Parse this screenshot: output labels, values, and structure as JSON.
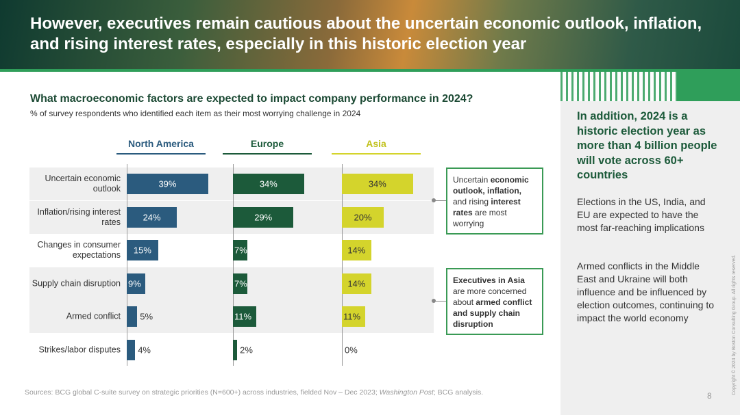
{
  "header": {
    "title": "However, executives remain cautious about the uncertain economic outlook, inflation, and rising interest rates, especially in this historic election year"
  },
  "chart_data": {
    "type": "bar",
    "orientation": "horizontal",
    "title": "What macroeconomic factors are expected to impact company performance in 2024?",
    "subtitle": "% of survey respondents who identified each item as their most worrying challenge in 2024",
    "categories": [
      "Uncertain economic outlook",
      "Inflation/rising interest rates",
      "Changes in consumer expectations",
      "Supply chain disruption",
      "Armed conflict",
      "Strikes/labor disputes"
    ],
    "series": [
      {
        "name": "North America",
        "color": "#2b5b7e",
        "values": [
          39,
          24,
          15,
          9,
          5,
          4
        ],
        "value_labels": [
          "39%",
          "24%",
          "15%",
          "9%",
          "5%",
          "4%"
        ]
      },
      {
        "name": "Europe",
        "color": "#1c5a3a",
        "values": [
          34,
          29,
          7,
          7,
          11,
          2
        ],
        "value_labels": [
          "34%",
          "29%",
          "7%",
          "7%",
          "11%",
          "2%"
        ]
      },
      {
        "name": "Asia",
        "color": "#d4d42c",
        "values": [
          34,
          20,
          14,
          14,
          11,
          0
        ],
        "value_labels": [
          "34%",
          "20%",
          "14%",
          "14%",
          "11%",
          "0%"
        ]
      }
    ]
  },
  "callouts": [
    {
      "parts": [
        {
          "text": "Uncertain "
        },
        {
          "text": "economic outlook, inflation,",
          "bold": true
        },
        {
          "text": " and rising "
        },
        {
          "text": "interest rates",
          "bold": true
        },
        {
          "text": " are most worrying"
        }
      ]
    },
    {
      "parts": [
        {
          "text": "Executives in Asia",
          "bold": true
        },
        {
          "text": " are more concerned about "
        },
        {
          "text": "armed conflict and supply chain disruption",
          "bold": true
        }
      ]
    }
  ],
  "sidebar": {
    "heading": "In addition, 2024 is a historic election year as more than 4 billion people will vote across 60+ countries",
    "paragraphs": [
      "Elections in the US, India, and EU are expected to have the most far-reaching implications",
      "Armed conflicts in the Middle East and Ukraine will both influence and be influenced by election outcomes, continuing to impact the world economy"
    ]
  },
  "footer": {
    "sources": [
      {
        "text": "Sources: BCG global C-suite survey on strategic priorities (N=600+) across industries, fielded Nov – Dec 2023; "
      },
      {
        "text": "Washington Post",
        "italic": true
      },
      {
        "text": "; BCG analysis."
      }
    ],
    "page_number": "8",
    "copyright": "Copyright © 2024 by Boston Consulting Group. All rights reserved."
  }
}
